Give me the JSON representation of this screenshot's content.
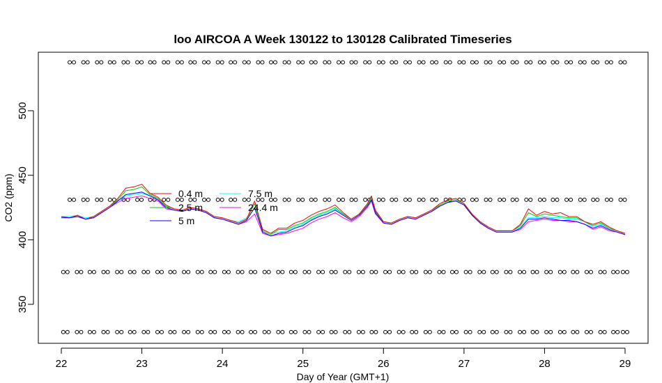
{
  "chart_data": {
    "type": "line",
    "title": "loo AIRCOA A  Week 130122 to 130128  Calibrated Timeseries",
    "xlabel": "Day of Year (GMT+1)",
    "ylabel": "CO2 (ppm)",
    "xlim": [
      22,
      29
    ],
    "ylim": [
      320,
      545
    ],
    "xticks": [
      "22",
      "23",
      "24",
      "25",
      "26",
      "27",
      "28",
      "29"
    ],
    "yticks": [
      "350",
      "400",
      "450",
      "500"
    ],
    "grid": false,
    "legend_position": "center-left",
    "legend": [
      {
        "name": "0.4 m",
        "color": "#ff0000"
      },
      {
        "name": "2.5 m",
        "color": "#00cd00"
      },
      {
        "name": "5 m",
        "color": "#0000ff"
      },
      {
        "name": "7.5 m",
        "color": "#00ffff"
      },
      {
        "name": "24.4 m",
        "color": "#ff00ff"
      }
    ],
    "base_series": {
      "x": [
        22.0,
        22.1,
        22.2,
        22.3,
        22.4,
        22.5,
        22.6,
        22.7,
        22.8,
        22.9,
        23.0,
        23.1,
        23.2,
        23.3,
        23.4,
        23.5,
        23.6,
        23.7,
        23.8,
        23.9,
        24.0,
        24.1,
        24.2,
        24.3,
        24.4,
        24.5,
        24.6,
        24.7,
        24.8,
        24.9,
        25.0,
        25.1,
        25.2,
        25.3,
        25.4,
        25.5,
        25.6,
        25.7,
        25.8,
        25.85,
        25.9,
        26.0,
        26.1,
        26.2,
        26.3,
        26.4,
        26.5,
        26.6,
        26.7,
        26.8,
        26.9,
        27.0,
        27.1,
        27.2,
        27.3,
        27.4,
        27.5,
        27.6,
        27.7,
        27.8,
        27.9,
        28.0,
        28.1,
        28.2,
        28.3,
        28.4,
        28.5,
        28.6,
        28.7,
        28.8,
        28.9,
        29.0
      ],
      "y": [
        418,
        417,
        419,
        416,
        418,
        422,
        426,
        431,
        436,
        437,
        438,
        435,
        432,
        426,
        424,
        423,
        425,
        424,
        422,
        418,
        417,
        415,
        413,
        416,
        426,
        407,
        404,
        406,
        407,
        410,
        412,
        416,
        419,
        421,
        424,
        420,
        416,
        420,
        427,
        432,
        422,
        414,
        413,
        416,
        418,
        417,
        420,
        423,
        427,
        430,
        431,
        428,
        420,
        414,
        410,
        407,
        407,
        407,
        410,
        418,
        417,
        418,
        417,
        416,
        416,
        415,
        413,
        410,
        412,
        409,
        407,
        405
      ]
    },
    "series": [
      {
        "name": "0.4 m",
        "values": [
          418,
          417,
          419,
          416,
          418,
          422,
          426,
          432,
          440,
          441,
          443,
          436,
          433,
          427,
          424,
          423,
          425,
          424,
          422,
          418,
          417,
          415,
          413,
          416,
          430,
          408,
          405,
          409,
          409,
          413,
          415,
          419,
          422,
          424,
          427,
          421,
          416,
          420,
          428,
          434,
          423,
          414,
          413,
          416,
          418,
          417,
          420,
          423,
          428,
          431,
          432,
          428,
          420,
          414,
          410,
          407,
          407,
          407,
          412,
          424,
          419,
          422,
          420,
          421,
          418,
          418,
          414,
          412,
          414,
          410,
          407,
          405
        ]
      },
      {
        "name": "2.5 m",
        "values": [
          418,
          417,
          419,
          416,
          418,
          422,
          426,
          431,
          438,
          439,
          441,
          435,
          432,
          426,
          424,
          423,
          425,
          424,
          422,
          418,
          417,
          415,
          413,
          416,
          428,
          407,
          404,
          408,
          408,
          411,
          413,
          417,
          420,
          422,
          425,
          420,
          416,
          420,
          427,
          433,
          422,
          414,
          413,
          416,
          418,
          417,
          420,
          423,
          427,
          430,
          431,
          428,
          420,
          414,
          410,
          407,
          407,
          407,
          411,
          421,
          418,
          420,
          419,
          418,
          417,
          417,
          414,
          411,
          413,
          409,
          407,
          405
        ]
      },
      {
        "name": "5 m",
        "values": [
          417,
          417,
          418,
          416,
          417,
          421,
          425,
          430,
          435,
          436,
          437,
          434,
          431,
          425,
          423,
          422,
          424,
          423,
          421,
          417,
          416,
          414,
          412,
          415,
          425,
          406,
          403,
          405,
          406,
          409,
          411,
          415,
          418,
          420,
          423,
          419,
          415,
          419,
          426,
          431,
          421,
          413,
          412,
          415,
          417,
          416,
          419,
          422,
          426,
          429,
          430,
          427,
          419,
          413,
          409,
          406,
          406,
          406,
          409,
          416,
          416,
          417,
          416,
          415,
          415,
          414,
          412,
          409,
          411,
          408,
          406,
          404
        ]
      },
      {
        "name": "7.5 m",
        "values": [
          418,
          418,
          419,
          417,
          418,
          422,
          426,
          430,
          434,
          435,
          436,
          434,
          431,
          426,
          424,
          423,
          425,
          424,
          422,
          418,
          417,
          415,
          414,
          417,
          424,
          408,
          405,
          406,
          407,
          410,
          412,
          416,
          419,
          421,
          424,
          420,
          416,
          420,
          427,
          432,
          422,
          414,
          413,
          416,
          418,
          417,
          420,
          423,
          427,
          430,
          431,
          428,
          420,
          414,
          410,
          407,
          407,
          407,
          410,
          417,
          417,
          418,
          417,
          417,
          416,
          416,
          414,
          410,
          412,
          409,
          407,
          405
        ]
      },
      {
        "name": "24.4 m",
        "values": [
          418,
          417,
          418,
          416,
          417,
          421,
          425,
          429,
          432,
          433,
          434,
          432,
          430,
          424,
          423,
          422,
          424,
          423,
          421,
          417,
          416,
          414,
          412,
          414,
          420,
          405,
          403,
          404,
          405,
          407,
          409,
          413,
          416,
          418,
          421,
          417,
          414,
          418,
          425,
          430,
          420,
          413,
          412,
          415,
          417,
          416,
          419,
          422,
          426,
          429,
          430,
          427,
          419,
          413,
          409,
          406,
          406,
          406,
          408,
          414,
          415,
          416,
          415,
          415,
          414,
          414,
          412,
          408,
          410,
          407,
          406,
          404
        ]
      }
    ],
    "marker_rows": [
      {
        "y": 537.5,
        "x": [
          22.13,
          22.3,
          22.47,
          22.63,
          22.8,
          22.97,
          23.13,
          23.3,
          23.47,
          23.63,
          23.8,
          23.97,
          24.13,
          24.3,
          24.47,
          24.63,
          24.8,
          24.97,
          25.13,
          25.3,
          25.47,
          25.63,
          25.8,
          25.97,
          26.13,
          26.3,
          26.47,
          26.63,
          26.8,
          26.97,
          27.13,
          27.3,
          27.47,
          27.63,
          27.8,
          27.97,
          28.13,
          28.3,
          28.47,
          28.63,
          28.8,
          28.97
        ]
      },
      {
        "y": 431,
        "x": [
          22.13,
          22.3,
          22.47,
          22.63,
          22.8,
          22.97,
          23.13,
          23.3,
          23.47,
          23.63,
          23.8,
          23.97,
          24.13,
          24.3,
          24.47,
          24.63,
          24.8,
          24.97,
          25.13,
          25.3,
          25.47,
          25.63,
          25.8,
          25.97,
          26.13,
          26.3,
          26.47,
          26.63,
          26.8,
          26.97,
          27.13,
          27.3,
          27.47,
          27.63,
          27.8,
          27.97,
          28.13,
          28.3,
          28.47,
          28.63,
          28.8,
          28.97
        ]
      },
      {
        "y": 375,
        "x": [
          22.05,
          22.22,
          22.38,
          22.55,
          22.72,
          22.88,
          23.05,
          23.22,
          23.38,
          23.55,
          23.72,
          23.88,
          24.05,
          24.22,
          24.38,
          24.55,
          24.72,
          24.88,
          25.05,
          25.22,
          25.38,
          25.55,
          25.72,
          25.88,
          26.05,
          26.22,
          26.38,
          26.55,
          26.72,
          26.88,
          27.05,
          27.22,
          27.38,
          27.55,
          27.72,
          27.88,
          28.05,
          28.22,
          28.38,
          28.55,
          28.72,
          28.88,
          29.0
        ]
      },
      {
        "y": 328.5,
        "x": [
          22.05,
          22.22,
          22.38,
          22.55,
          22.72,
          22.88,
          23.05,
          23.22,
          23.38,
          23.55,
          23.72,
          23.88,
          24.05,
          24.22,
          24.38,
          24.55,
          24.72,
          24.88,
          25.05,
          25.22,
          25.38,
          25.55,
          25.72,
          25.88,
          26.05,
          26.22,
          26.38,
          26.55,
          26.72,
          26.88,
          27.05,
          27.22,
          27.38,
          27.55,
          27.72,
          27.88,
          28.05,
          28.22,
          28.38,
          28.55,
          28.72,
          28.88,
          29.0
        ]
      }
    ]
  }
}
